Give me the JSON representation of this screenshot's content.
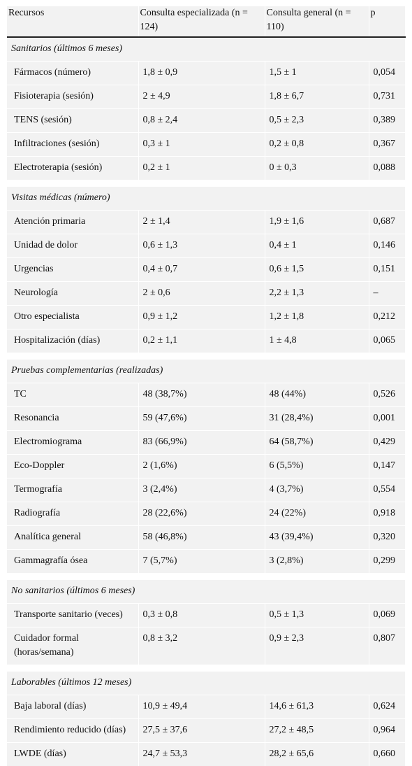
{
  "header": {
    "col1": "Recursos",
    "col2": "Consulta especializada (n = 124)",
    "col3": "Consulta general (n = 110)",
    "col4": "p"
  },
  "sections": [
    {
      "title": "Sanitarios (últimos 6 meses)",
      "rows": [
        [
          "Fármacos (número)",
          "1,8 ± 0,9",
          "1,5 ± 1",
          "0,054"
        ],
        [
          "Fisioterapia (sesión)",
          "2 ± 4,9",
          "1,8 ± 6,7",
          "0,731"
        ],
        [
          "TENS (sesión)",
          "0,8 ± 2,4",
          "0,5 ± 2,3",
          "0,389"
        ],
        [
          "Infiltraciones (sesión)",
          "0,3 ± 1",
          "0,2 ± 0,8",
          "0,367"
        ],
        [
          "Electroterapia (sesión)",
          "0,2 ± 1",
          "0 ± 0,3",
          "0,088"
        ]
      ]
    },
    {
      "title": "Visitas médicas (número)",
      "rows": [
        [
          "Atención primaria",
          "2 ± 1,4",
          "1,9 ± 1,6",
          "0,687"
        ],
        [
          "Unidad de dolor",
          "0,6 ± 1,3",
          "0,4 ± 1",
          "0,146"
        ],
        [
          "Urgencias",
          "0,4 ± 0,7",
          "0,6 ± 1,5",
          "0,151"
        ],
        [
          "Neurología",
          "2 ± 0,6",
          "2,2 ± 1,3",
          "–"
        ],
        [
          "Otro especialista",
          "0,9 ± 1,2",
          "1,2 ± 1,8",
          "0,212"
        ],
        [
          "Hospitalización (días)",
          "0,2 ± 1,1",
          "1 ± 4,8",
          "0,065"
        ]
      ]
    },
    {
      "title": "Pruebas complementarias (realizadas)",
      "rows": [
        [
          "TC",
          "48 (38,7%)",
          "48 (44%)",
          "0,526"
        ],
        [
          "Resonancia",
          "59 (47,6%)",
          "31 (28,4%)",
          "0,001"
        ],
        [
          "Electromiograma",
          "83 (66,9%)",
          "64 (58,7%)",
          "0,429"
        ],
        [
          "Eco-Doppler",
          "2 (1,6%)",
          "6 (5,5%)",
          "0,147"
        ],
        [
          "Termografía",
          "3 (2,4%)",
          "4 (3,7%)",
          "0,554"
        ],
        [
          "Radiografía",
          "28 (22,6%)",
          "24 (22%)",
          "0,918"
        ],
        [
          "Analítica general",
          "58 (46,8%)",
          "43 (39,4%)",
          "0,320"
        ],
        [
          "Gammagrafía ósea",
          "7 (5,7%)",
          "3 (2,8%)",
          "0,299"
        ]
      ]
    },
    {
      "title": "No sanitarios (últimos 6 meses)",
      "rows": [
        [
          "Transporte sanitario (veces)",
          "0,3 ± 0,8",
          "0,5 ± 1,3",
          "0,069"
        ],
        [
          "Cuidador formal (horas/semana)",
          "0,8 ± 3,2",
          "0,9 ± 2,3",
          "0,807"
        ]
      ]
    },
    {
      "title": "Laborables (últimos 12 meses)",
      "rows": [
        [
          "Baja laboral (días)",
          "10,9 ± 49,4",
          "14,6 ± 61,3",
          "0,624"
        ],
        [
          "Rendimiento reducido (días)",
          "27,5 ± 37,6",
          "27,2 ± 48,5",
          "0,964"
        ],
        [
          "LWDE (días)",
          "24,7 ± 53,3",
          "28,2 ± 65,6",
          "0,660"
        ]
      ]
    }
  ]
}
